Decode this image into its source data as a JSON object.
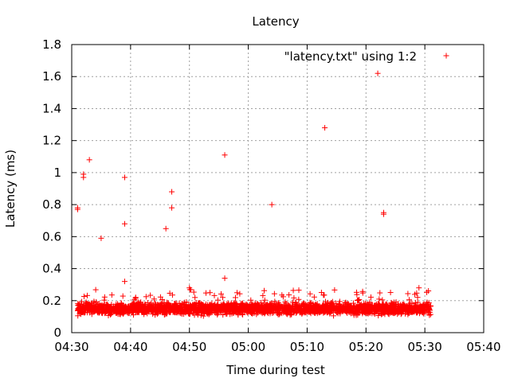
{
  "chart_data": {
    "type": "scatter",
    "title": "Latency",
    "xlabel": "Time during test",
    "ylabel": "Latency (ms)",
    "legend": "\"latency.txt\" using 1:2",
    "legend_position": "top-right",
    "grid": true,
    "marker": "+",
    "color": "#ff0000",
    "xlim": [
      "04:30",
      "05:40"
    ],
    "ylim": [
      0,
      1.8
    ],
    "x_ticks": [
      "04:30",
      "04:40",
      "04:50",
      "05:00",
      "05:10",
      "05:20",
      "05:30",
      "05:40"
    ],
    "y_ticks": [
      "0",
      "0.2",
      "0.4",
      "0.6",
      "0.8",
      "1",
      "1.2",
      "1.4",
      "1.6",
      "1.8"
    ],
    "x_range_data": [
      "04:31",
      "05:31"
    ],
    "baseline_band_ms": [
      0.1,
      0.2
    ],
    "outliers": [
      {
        "x": "04:31",
        "y": 0.78
      },
      {
        "x": "04:31",
        "y": 0.77
      },
      {
        "x": "04:32",
        "y": 0.99
      },
      {
        "x": "04:32",
        "y": 0.97
      },
      {
        "x": "04:33",
        "y": 1.08
      },
      {
        "x": "04:35",
        "y": 0.59
      },
      {
        "x": "04:39",
        "y": 0.68
      },
      {
        "x": "04:39",
        "y": 0.97
      },
      {
        "x": "04:39",
        "y": 0.32
      },
      {
        "x": "04:46",
        "y": 0.65
      },
      {
        "x": "04:47",
        "y": 0.88
      },
      {
        "x": "04:47",
        "y": 0.78
      },
      {
        "x": "04:56",
        "y": 1.11
      },
      {
        "x": "04:56",
        "y": 0.34
      },
      {
        "x": "05:04",
        "y": 0.8
      },
      {
        "x": "05:13",
        "y": 1.28
      },
      {
        "x": "05:22",
        "y": 1.62
      },
      {
        "x": "05:23",
        "y": 0.75
      },
      {
        "x": "05:23",
        "y": 0.74
      },
      {
        "x": "04:50",
        "y": 0.28
      },
      {
        "x": "05:29",
        "y": 0.28
      }
    ]
  }
}
